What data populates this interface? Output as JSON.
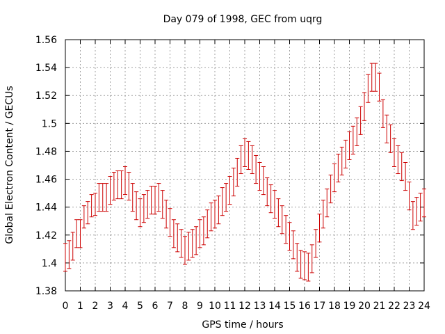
{
  "chart_data": {
    "type": "scatter",
    "title": "Day 079 of 1998, GEC from uqrg",
    "xlabel": "GPS time / hours",
    "ylabel": "Global Electron Content / GECUs",
    "xlim": [
      0,
      24
    ],
    "ylim": [
      1.38,
      1.56
    ],
    "x_ticks": [
      "0",
      "1",
      "2",
      "3",
      "4",
      "5",
      "6",
      "7",
      "8",
      "9",
      "10",
      "11",
      "12",
      "13",
      "14",
      "15",
      "16",
      "17",
      "18",
      "19",
      "20",
      "21",
      "22",
      "23",
      "24"
    ],
    "y_ticks": [
      "1.38",
      "1.4",
      "1.42",
      "1.44",
      "1.46",
      "1.48",
      "1.5",
      "1.52",
      "1.54",
      "1.56"
    ],
    "grid": true,
    "error_bar_color": "#cc0000",
    "series": [
      {
        "x": [
          0,
          0.25,
          0.5,
          0.75,
          1,
          1.25,
          1.5,
          1.75,
          2,
          2.25,
          2.5,
          2.75,
          3,
          3.25,
          3.5,
          3.75,
          4,
          4.25,
          4.5,
          4.75,
          5,
          5.25,
          5.5,
          5.75,
          6,
          6.25,
          6.5,
          6.75,
          7,
          7.25,
          7.5,
          7.75,
          8,
          8.25,
          8.5,
          8.75,
          9,
          9.25,
          9.5,
          9.75,
          10,
          10.25,
          10.5,
          10.75,
          11,
          11.25,
          11.5,
          11.75,
          12,
          12.25,
          12.5,
          12.75,
          13,
          13.25,
          13.5,
          13.75,
          14,
          14.25,
          14.5,
          14.75,
          15,
          15.25,
          15.5,
          15.75,
          16,
          16.25,
          16.5,
          16.75,
          17,
          17.25,
          17.5,
          17.75,
          18,
          18.25,
          18.5,
          18.75,
          19,
          19.25,
          19.5,
          19.75,
          20,
          20.25,
          20.5,
          20.75,
          21,
          21.25,
          21.5,
          21.75,
          22,
          22.25,
          22.5,
          22.75,
          23,
          23.25,
          23.5,
          23.75,
          24
        ],
        "y": [
          1.404,
          1.406,
          1.412,
          1.421,
          1.421,
          1.433,
          1.436,
          1.441,
          1.442,
          1.447,
          1.447,
          1.447,
          1.452,
          1.455,
          1.456,
          1.456,
          1.459,
          1.455,
          1.447,
          1.441,
          1.436,
          1.439,
          1.442,
          1.445,
          1.445,
          1.447,
          1.442,
          1.435,
          1.429,
          1.421,
          1.418,
          1.414,
          1.409,
          1.412,
          1.414,
          1.416,
          1.421,
          1.423,
          1.428,
          1.433,
          1.435,
          1.438,
          1.444,
          1.447,
          1.452,
          1.458,
          1.465,
          1.474,
          1.479,
          1.477,
          1.474,
          1.467,
          1.462,
          1.459,
          1.451,
          1.446,
          1.442,
          1.436,
          1.431,
          1.424,
          1.419,
          1.413,
          1.404,
          1.399,
          1.398,
          1.397,
          1.403,
          1.414,
          1.425,
          1.435,
          1.443,
          1.453,
          1.461,
          1.468,
          1.473,
          1.478,
          1.484,
          1.488,
          1.494,
          1.502,
          1.512,
          1.525,
          1.533,
          1.533,
          1.526,
          1.507,
          1.496,
          1.489,
          1.479,
          1.474,
          1.469,
          1.462,
          1.448,
          1.434,
          1.437,
          1.44,
          1.443
        ],
        "err": [
          0.01,
          0.01,
          0.01,
          0.01,
          0.01,
          0.008,
          0.008,
          0.008,
          0.008,
          0.01,
          0.01,
          0.01,
          0.01,
          0.01,
          0.01,
          0.01,
          0.01,
          0.01,
          0.01,
          0.01,
          0.01,
          0.01,
          0.01,
          0.01,
          0.01,
          0.01,
          0.01,
          0.01,
          0.01,
          0.01,
          0.01,
          0.01,
          0.01,
          0.01,
          0.01,
          0.01,
          0.01,
          0.01,
          0.01,
          0.01,
          0.01,
          0.01,
          0.01,
          0.01,
          0.01,
          0.01,
          0.01,
          0.01,
          0.01,
          0.01,
          0.01,
          0.01,
          0.01,
          0.01,
          0.01,
          0.01,
          0.01,
          0.01,
          0.01,
          0.01,
          0.01,
          0.01,
          0.01,
          0.01,
          0.01,
          0.01,
          0.01,
          0.01,
          0.01,
          0.01,
          0.01,
          0.01,
          0.01,
          0.01,
          0.01,
          0.01,
          0.01,
          0.01,
          0.01,
          0.01,
          0.01,
          0.01,
          0.01,
          0.01,
          0.01,
          0.01,
          0.01,
          0.01,
          0.01,
          0.01,
          0.01,
          0.01,
          0.01,
          0.01,
          0.01,
          0.01,
          0.01
        ]
      }
    ]
  }
}
